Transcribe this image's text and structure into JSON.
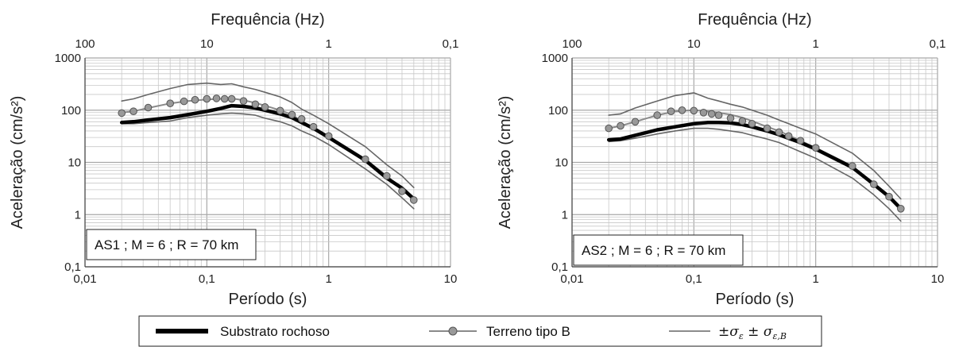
{
  "chart_data": [
    {
      "type": "line",
      "annotation": "AS1 ; M = 6 ; R = 70 km",
      "xlabel": "Período (s)",
      "ylabel": "Aceleração (cm/s²)",
      "x2label": "Frequência (Hz)",
      "log_x": true,
      "log_y": true,
      "xlim": [
        0.01,
        10
      ],
      "ylim": [
        0.1,
        1000
      ],
      "x_ticks": [
        "0,01",
        "0,1",
        "1",
        "10"
      ],
      "x2_ticks": [
        "100",
        "10",
        "1",
        "0,1"
      ],
      "y_ticks": [
        "0,1",
        "1",
        "10",
        "100",
        "1000"
      ],
      "grid": true,
      "x": [
        0.02,
        0.025,
        0.033,
        0.05,
        0.07,
        0.1,
        0.13,
        0.16,
        0.2,
        0.25,
        0.3,
        0.4,
        0.5,
        0.6,
        0.75,
        1,
        2,
        3,
        4,
        5
      ],
      "series": [
        {
          "name": "Substrato rochoso",
          "values": [
            58,
            60,
            65,
            72,
            82,
            95,
            108,
            122,
            118,
            110,
            100,
            85,
            72,
            58,
            45,
            30,
            11,
            5,
            3.2,
            2.0
          ]
        },
        {
          "name": "Terreno tipo B",
          "values": [
            90,
            95,
            110,
            135,
            150,
            160,
            165,
            168,
            155,
            138,
            122,
            100,
            82,
            62,
            46,
            31,
            11.5,
            5.5,
            3.1,
            1.9
          ]
        },
        {
          "name": "+σ",
          "values": [
            150,
            165,
            200,
            260,
            310,
            330,
            310,
            320,
            280,
            250,
            220,
            180,
            140,
            105,
            80,
            55,
            20,
            9,
            5.5,
            3.3
          ]
        },
        {
          "name": "-σ",
          "values": [
            55,
            55,
            58,
            62,
            72,
            80,
            85,
            88,
            85,
            80,
            70,
            60,
            50,
            40,
            32,
            22,
            7.5,
            3.8,
            2.1,
            1.3
          ]
        }
      ],
      "marker_x": [
        0.02,
        0.025,
        0.033,
        0.05,
        0.065,
        0.08,
        0.1,
        0.12,
        0.14,
        0.16,
        0.2,
        0.25,
        0.3,
        0.4,
        0.5,
        0.6,
        0.75,
        1,
        2,
        3,
        4,
        5
      ],
      "marker_values": [
        88,
        95,
        112,
        135,
        148,
        158,
        165,
        168,
        165,
        165,
        150,
        130,
        115,
        98,
        82,
        68,
        48,
        32,
        11.5,
        5.5,
        2.8,
        1.9
      ]
    },
    {
      "type": "line",
      "annotation": "AS2 ; M = 6 ; R = 70 km",
      "xlabel": "Período (s)",
      "ylabel": "Aceleração (cm/s²)",
      "x2label": "Frequência (Hz)",
      "log_x": true,
      "log_y": true,
      "xlim": [
        0.01,
        10
      ],
      "ylim": [
        0.1,
        1000
      ],
      "x_ticks": [
        "0,01",
        "0,1",
        "1",
        "10"
      ],
      "x2_ticks": [
        "100",
        "10",
        "1",
        "0,1"
      ],
      "y_ticks": [
        "0,1",
        "1",
        "10",
        "100",
        "1000"
      ],
      "grid": true,
      "x": [
        0.02,
        0.025,
        0.033,
        0.05,
        0.07,
        0.1,
        0.13,
        0.16,
        0.2,
        0.25,
        0.3,
        0.4,
        0.5,
        0.6,
        0.75,
        1,
        2,
        3,
        4,
        5
      ],
      "series": [
        {
          "name": "Substrato rochoso",
          "values": [
            27,
            28,
            33,
            42,
            48,
            55,
            58,
            58,
            57,
            53,
            48,
            40,
            34,
            29,
            24,
            18,
            8,
            3.8,
            2.2,
            1.3
          ]
        },
        {
          "name": "Terreno tipo B",
          "values": [
            45,
            50,
            60,
            80,
            95,
            100,
            95,
            90,
            82,
            72,
            62,
            48,
            40,
            33,
            26,
            19,
            8.5,
            3.8,
            2.2,
            1.3
          ]
        },
        {
          "name": "+σ",
          "values": [
            80,
            85,
            110,
            150,
            190,
            215,
            170,
            150,
            130,
            115,
            100,
            80,
            65,
            55,
            45,
            35,
            15,
            7,
            3.5,
            2.0
          ]
        },
        {
          "name": "-σ",
          "values": [
            25,
            26,
            29,
            35,
            40,
            45,
            45,
            43,
            40,
            37,
            33,
            28,
            24,
            20,
            16,
            12,
            5,
            2.4,
            1.3,
            0.75
          ]
        }
      ],
      "marker_x": [
        0.02,
        0.025,
        0.033,
        0.05,
        0.065,
        0.08,
        0.1,
        0.12,
        0.14,
        0.16,
        0.2,
        0.25,
        0.3,
        0.4,
        0.5,
        0.6,
        0.75,
        1,
        2,
        3,
        4,
        5
      ],
      "marker_values": [
        45,
        50,
        60,
        80,
        95,
        100,
        98,
        90,
        85,
        80,
        70,
        62,
        55,
        45,
        38,
        32,
        26,
        19,
        8.5,
        3.8,
        2.2,
        1.3
      ]
    }
  ],
  "legend": {
    "items": [
      {
        "label": "Substrato rochoso",
        "style": "thick-black-line"
      },
      {
        "label": "Terreno tipo B",
        "style": "grey-line-with-circles"
      },
      {
        "label": "",
        "style": "thin-grey-line",
        "math": true
      }
    ]
  },
  "colors": {
    "substrato": "#000000",
    "terreno": "#8a8a8a",
    "sigma": "#666666",
    "grid": "#c8c8c8",
    "marker_fill": "#999999",
    "marker_stroke": "#555555"
  }
}
